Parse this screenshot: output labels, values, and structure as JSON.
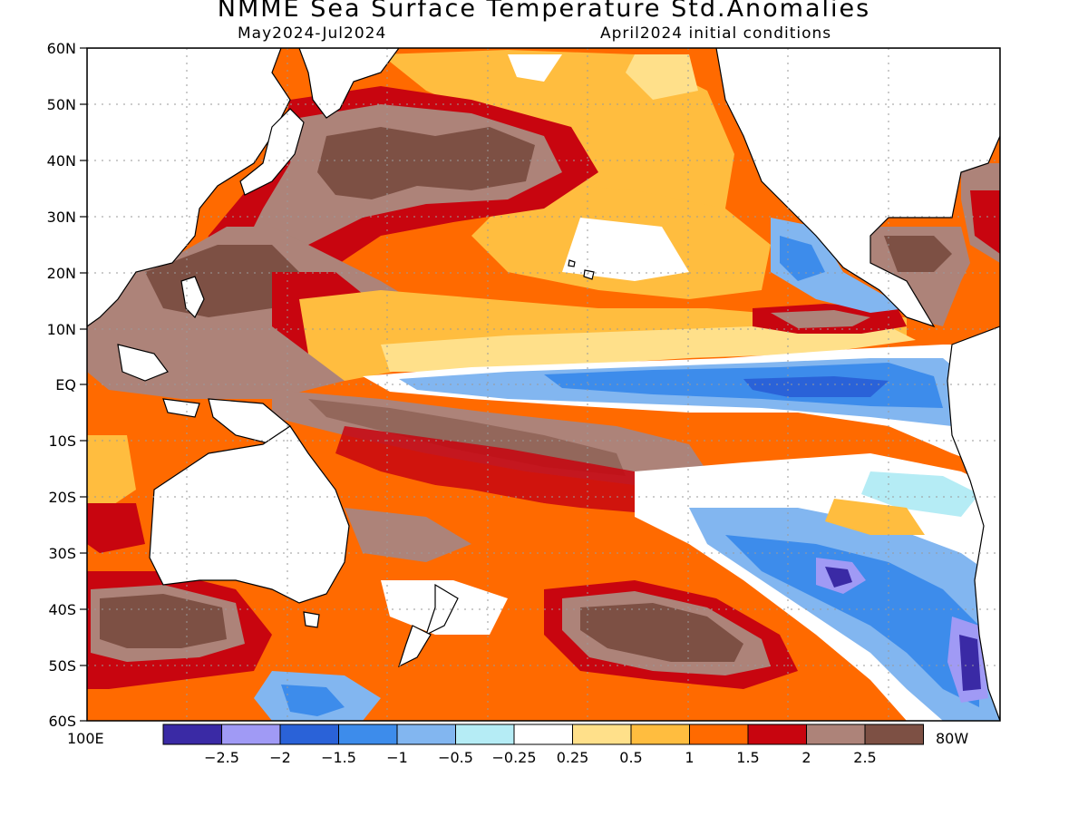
{
  "header": {
    "title": "NMME Sea Surface Temperature Std.Anomalies",
    "period": "May2024-Jul2024",
    "initial": "April2024 initial conditions"
  },
  "axes": {
    "lat_labels": [
      "60N",
      "50N",
      "40N",
      "30N",
      "20N",
      "10N",
      "EQ",
      "10S",
      "20S",
      "30S",
      "40S",
      "50S",
      "60S"
    ],
    "lon_left": "100E",
    "lon_right": "80W"
  },
  "colorbar": {
    "colors": [
      "#3a2aa5",
      "#a09af5",
      "#2a62d8",
      "#3d8ceb",
      "#82b6f0",
      "#b5ecf5",
      "#ffffff",
      "#ffe08a",
      "#ffbd3f",
      "#ff6a00",
      "#c8050f",
      "#ad8379",
      "#7d5044"
    ],
    "labels": [
      "-2.5",
      "-2",
      "-1.5",
      "-1",
      "-0.5",
      "-0.25",
      "0.25",
      "0.5",
      "1",
      "1.5",
      "2",
      "2.5"
    ]
  },
  "palette": {
    "land": "#ffffff",
    "coast": "#000000",
    "grid": "#9a9a9a"
  }
}
